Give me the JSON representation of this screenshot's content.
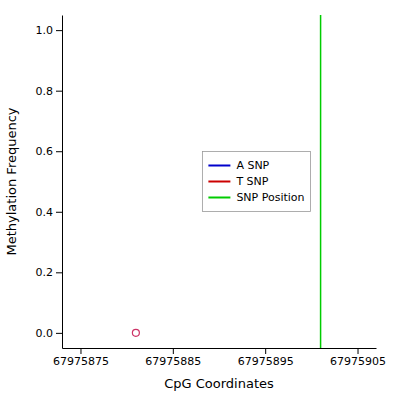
{
  "chart_data": {
    "type": "scatter",
    "xlabel": "CpG Coordinates",
    "ylabel": "Methylation Frequency",
    "xlim": [
      67975873,
      67975907
    ],
    "ylim": [
      -0.05,
      1.05
    ],
    "xticks": [
      67975875,
      67975885,
      67975895,
      67975905
    ],
    "yticks": [
      {
        "value": 0.0,
        "label": "0.0"
      },
      0.2,
      0.4,
      0.6,
      0.8,
      {
        "value": 1.0,
        "label": "1.0"
      }
    ],
    "legend": "right",
    "series": [
      {
        "type": "scatter",
        "x": [
          67975881
        ],
        "values": [
          0.0
        ],
        "color": "#cc3366",
        "marker": "circle"
      },
      {
        "type": "line",
        "name": "A SNP",
        "color": "#0000cc",
        "x": [],
        "values": []
      },
      {
        "type": "line",
        "name": "T SNP",
        "color": "#cc0000",
        "x": [],
        "values": []
      },
      {
        "type": "vline",
        "name": "SNP Position",
        "color": "#00cc00",
        "x": [
          67975901
        ]
      }
    ]
  }
}
